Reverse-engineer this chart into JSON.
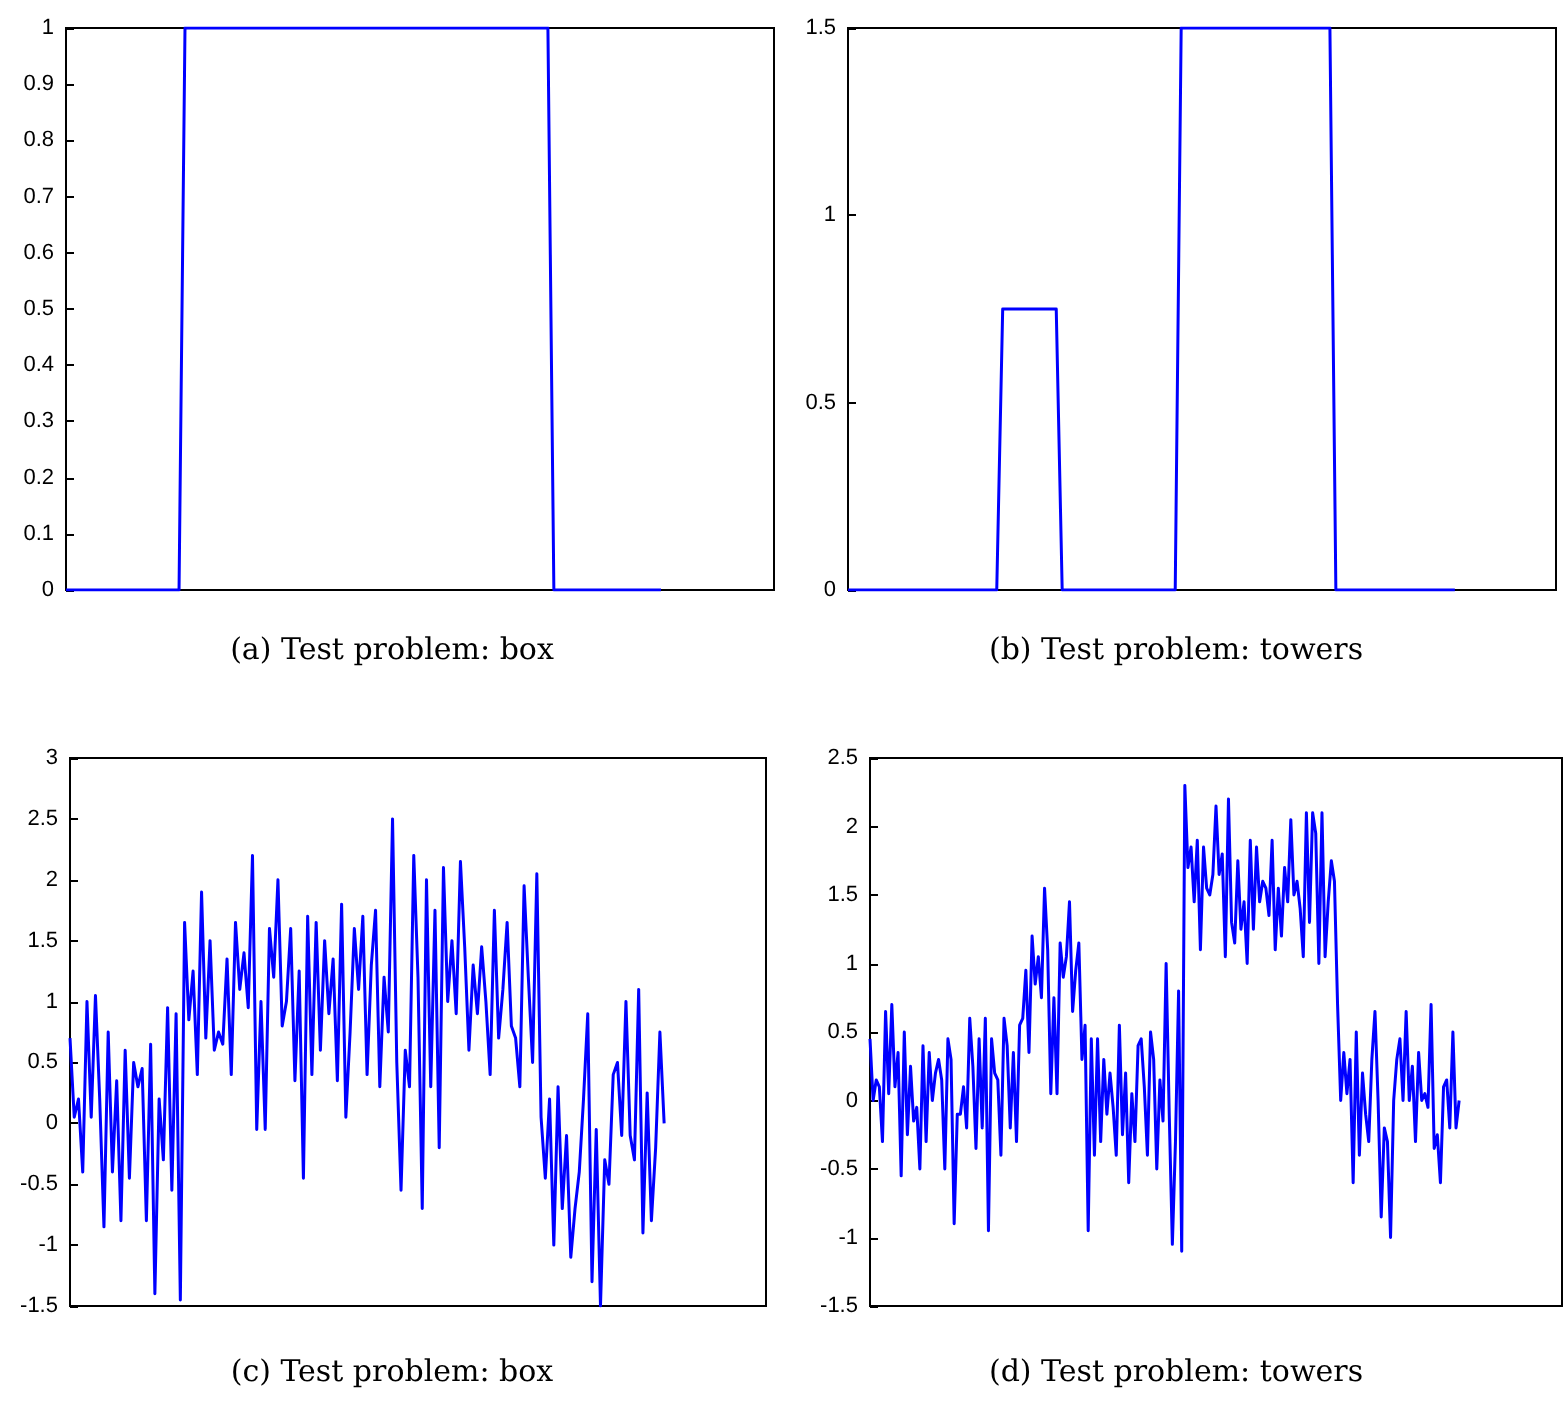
{
  "chart_data": [
    {
      "type": "line",
      "title": "(a) Test problem: box",
      "categories": [
        null,
        null,
        null,
        null,
        null,
        null,
        null,
        null,
        null,
        null,
        null,
        null,
        null,
        null,
        null,
        null,
        null,
        null,
        null,
        null,
        null,
        null,
        null,
        null,
        null,
        null,
        null,
        null,
        null,
        null,
        null,
        null,
        null,
        null,
        null,
        null,
        null,
        null,
        null,
        null,
        null,
        null,
        null,
        null,
        null,
        null,
        null,
        null,
        null,
        null,
        null,
        null,
        null,
        null,
        null,
        null,
        null,
        null,
        null,
        null,
        null,
        null,
        null,
        null,
        null,
        null,
        null,
        null,
        null,
        null,
        null,
        null,
        null,
        null,
        null,
        null,
        null,
        null,
        null,
        null,
        null,
        null,
        null,
        null,
        null,
        null,
        null,
        null,
        null,
        null,
        null,
        null,
        null,
        null,
        null,
        null,
        null,
        null,
        null,
        null,
        null,
        null,
        null,
        null,
        null,
        null,
        null,
        null,
        null,
        null,
        null,
        null,
        null,
        null,
        null,
        null,
        null,
        null,
        null,
        null
      ],
      "series": [
        {
          "color": "#0000ff",
          "values": [
            0,
            0,
            0,
            0,
            0,
            0,
            0,
            0,
            0,
            0,
            0,
            0,
            0,
            0,
            0,
            0,
            0,
            0,
            0,
            0,
            1,
            1,
            1,
            1,
            1,
            1,
            1,
            1,
            1,
            1,
            1,
            1,
            1,
            1,
            1,
            1,
            1,
            1,
            1,
            1,
            1,
            1,
            1,
            1,
            1,
            1,
            1,
            1,
            1,
            1,
            1,
            1,
            1,
            1,
            1,
            1,
            1,
            1,
            1,
            1,
            1,
            1,
            1,
            1,
            1,
            1,
            1,
            1,
            1,
            1,
            1,
            1,
            1,
            1,
            1,
            1,
            1,
            1,
            1,
            1,
            1,
            1,
            0,
            0,
            0,
            0,
            0,
            0,
            0,
            0,
            0,
            0,
            0,
            0,
            0,
            0,
            0,
            0,
            0,
            0,
            0,
            null,
            null,
            null,
            null,
            null,
            null,
            null,
            null,
            null,
            null,
            null,
            null,
            null,
            null,
            null,
            null,
            null,
            null,
            null
          ]
        }
      ],
      "ylim": [
        0,
        1
      ],
      "yticks": [
        0,
        0.1,
        0.2,
        0.3,
        0.4,
        0.5,
        0.6,
        0.7,
        0.8,
        0.9,
        1
      ],
      "grid": false,
      "marker": "none",
      "line_style": "solid"
    },
    {
      "type": "line",
      "title": "(b) Test problem: towers",
      "categories": [
        null,
        null,
        null,
        null,
        null,
        null,
        null,
        null,
        null,
        null,
        null,
        null,
        null,
        null,
        null,
        null,
        null,
        null,
        null,
        null,
        null,
        null,
        null,
        null,
        null,
        null,
        null,
        null,
        null,
        null,
        null,
        null,
        null,
        null,
        null,
        null,
        null,
        null,
        null,
        null,
        null,
        null,
        null,
        null,
        null,
        null,
        null,
        null,
        null,
        null,
        null,
        null,
        null,
        null,
        null,
        null,
        null,
        null,
        null,
        null,
        null,
        null,
        null,
        null,
        null,
        null,
        null,
        null,
        null,
        null,
        null,
        null,
        null,
        null,
        null,
        null,
        null,
        null,
        null,
        null,
        null,
        null,
        null,
        null,
        null,
        null,
        null,
        null,
        null,
        null,
        null,
        null,
        null,
        null,
        null,
        null,
        null,
        null,
        null,
        null,
        null,
        null,
        null,
        null,
        null,
        null,
        null,
        null,
        null,
        null,
        null,
        null,
        null,
        null,
        null,
        null,
        null,
        null,
        null,
        null
      ],
      "series": [
        {
          "color": "#0000ff",
          "values": [
            0,
            0,
            0,
            0,
            0,
            0,
            0,
            0,
            0,
            0,
            0,
            0,
            0,
            0,
            0,
            0,
            0,
            0,
            0,
            0,
            0,
            0,
            0,
            0,
            0,
            0,
            0.75,
            0.75,
            0.75,
            0.75,
            0.75,
            0.75,
            0.75,
            0.75,
            0.75,
            0.75,
            0,
            0,
            0,
            0,
            0,
            0,
            0,
            0,
            0,
            0,
            0,
            0,
            0,
            0,
            0,
            0,
            0,
            0,
            0,
            0,
            1.5,
            1.5,
            1.5,
            1.5,
            1.5,
            1.5,
            1.5,
            1.5,
            1.5,
            1.5,
            1.5,
            1.5,
            1.5,
            1.5,
            1.5,
            1.5,
            1.5,
            1.5,
            1.5,
            1.5,
            1.5,
            1.5,
            1.5,
            1.5,
            1.5,
            1.5,
            0,
            0,
            0,
            0,
            0,
            0,
            0,
            0,
            0,
            0,
            0,
            0,
            0,
            0,
            0,
            0,
            0,
            0,
            0,
            0,
            0,
            null,
            null,
            null,
            null,
            null,
            null,
            null,
            null,
            null,
            null,
            null,
            null,
            null,
            null,
            null,
            null,
            null
          ]
        }
      ],
      "ylim": [
        0,
        1.5
      ],
      "yticks": [
        0,
        0.5,
        1,
        1.5
      ],
      "grid": false,
      "marker": "none",
      "line_style": "solid"
    },
    {
      "type": "line",
      "title": "(c) Test problem: box",
      "categories": [
        null,
        null,
        null,
        null,
        null,
        null,
        null,
        null,
        null,
        null,
        null,
        null,
        null,
        null,
        null,
        null,
        null,
        null,
        null,
        null,
        null,
        null,
        null,
        null,
        null,
        null,
        null,
        null,
        null,
        null,
        null,
        null,
        null,
        null,
        null,
        null,
        null,
        null,
        null,
        null,
        null,
        null,
        null,
        null,
        null,
        null,
        null,
        null,
        null,
        null,
        null,
        null,
        null,
        null,
        null,
        null,
        null,
        null,
        null,
        null,
        null,
        null,
        null,
        null,
        null,
        null,
        null,
        null,
        null,
        null,
        null,
        null,
        null,
        null,
        null,
        null,
        null,
        null,
        null,
        null,
        null,
        null,
        null,
        null,
        null,
        null,
        null,
        null,
        null,
        null,
        null,
        null,
        null,
        null,
        null,
        null,
        null,
        null,
        null,
        null,
        null,
        null,
        null,
        null,
        null,
        null,
        null,
        null,
        null,
        null,
        null,
        null,
        null,
        null,
        null,
        null,
        null,
        null,
        null,
        null,
        null,
        null,
        null,
        null,
        null,
        null,
        null,
        null,
        null,
        null,
        null,
        null,
        null,
        null,
        null,
        null,
        null,
        null,
        null,
        null,
        null,
        null,
        null,
        null,
        null,
        null,
        null,
        null,
        null,
        null,
        null,
        null,
        null,
        null,
        null,
        null,
        null,
        null,
        null,
        null,
        null,
        null,
        null,
        null,
        null
      ],
      "series": [
        {
          "color": "#0000ff",
          "values": [
            0.7,
            0.05,
            0.2,
            -0.4,
            1.0,
            0.05,
            1.05,
            0.2,
            -0.85,
            0.75,
            -0.4,
            0.35,
            -0.8,
            0.6,
            -0.45,
            0.5,
            0.3,
            0.45,
            -0.8,
            0.65,
            -1.4,
            0.2,
            -0.3,
            0.95,
            -0.55,
            0.9,
            -1.45,
            1.65,
            0.85,
            1.25,
            0.4,
            1.9,
            0.7,
            1.5,
            0.6,
            0.75,
            0.65,
            1.35,
            0.4,
            1.65,
            1.1,
            1.4,
            0.95,
            2.2,
            -0.05,
            1.0,
            -0.05,
            1.6,
            1.2,
            2.0,
            0.8,
            1.0,
            1.6,
            0.35,
            1.25,
            -0.45,
            1.7,
            0.4,
            1.65,
            0.6,
            1.5,
            0.9,
            1.35,
            0.35,
            1.8,
            0.05,
            0.75,
            1.6,
            1.1,
            1.7,
            0.4,
            1.3,
            1.75,
            0.3,
            1.2,
            0.75,
            2.5,
            0.5,
            -0.55,
            0.6,
            0.3,
            2.2,
            1.2,
            -0.7,
            2.0,
            0.3,
            1.75,
            -0.2,
            2.1,
            1.0,
            1.5,
            0.9,
            2.15,
            1.45,
            0.6,
            1.3,
            0.9,
            1.45,
            1.0,
            0.4,
            1.75,
            0.7,
            1.1,
            1.65,
            0.8,
            0.7,
            0.3,
            1.95,
            1.2,
            0.5,
            2.05,
            0.05,
            -0.45,
            0.2,
            -1.0,
            0.3,
            -0.7,
            -0.1,
            -1.1,
            -0.7,
            -0.4,
            0.2,
            0.9,
            -1.3,
            -0.05,
            -1.5,
            -0.3,
            -0.5,
            0.4,
            0.5,
            -0.1,
            1.0,
            -0.1,
            -0.3,
            1.1,
            -0.9,
            0.25,
            -0.8,
            -0.2,
            0.75,
            0.0,
            null,
            null,
            null,
            null,
            null,
            null,
            null,
            null,
            null,
            null,
            null,
            null,
            null,
            null,
            null,
            null,
            null,
            null,
            null,
            null,
            null,
            null,
            null,
            null
          ]
        }
      ],
      "ylim": [
        -1.5,
        3
      ],
      "yticks": [
        -1.5,
        -1,
        -0.5,
        0,
        0.5,
        1,
        1.5,
        2,
        2.5,
        3
      ],
      "grid": false,
      "marker": "none",
      "line_style": "solid"
    },
    {
      "type": "line",
      "title": "(d) Test problem: towers",
      "categories": [
        null,
        null,
        null,
        null,
        null,
        null,
        null,
        null,
        null,
        null,
        null,
        null,
        null,
        null,
        null,
        null,
        null,
        null,
        null,
        null,
        null,
        null,
        null,
        null,
        null,
        null,
        null,
        null,
        null,
        null,
        null,
        null,
        null,
        null,
        null,
        null,
        null,
        null,
        null,
        null,
        null,
        null,
        null,
        null,
        null,
        null,
        null,
        null,
        null,
        null,
        null,
        null,
        null,
        null,
        null,
        null,
        null,
        null,
        null,
        null,
        null,
        null,
        null,
        null,
        null,
        null,
        null,
        null,
        null,
        null,
        null,
        null,
        null,
        null,
        null,
        null,
        null,
        null,
        null,
        null,
        null,
        null,
        null,
        null,
        null,
        null,
        null,
        null,
        null,
        null,
        null,
        null,
        null,
        null,
        null,
        null,
        null,
        null,
        null,
        null,
        null,
        null,
        null,
        null,
        null,
        null,
        null,
        null,
        null,
        null,
        null,
        null,
        null,
        null,
        null,
        null,
        null,
        null,
        null,
        null,
        null,
        null,
        null,
        null,
        null,
        null,
        null,
        null,
        null,
        null,
        null,
        null,
        null,
        null,
        null,
        null,
        null,
        null,
        null,
        null,
        null,
        null,
        null,
        null,
        null,
        null,
        null,
        null,
        null,
        null,
        null,
        null,
        null,
        null,
        null,
        null,
        null,
        null,
        null,
        null,
        null,
        null,
        null,
        null,
        null,
        null,
        null,
        null,
        null,
        null,
        null,
        null,
        null,
        null,
        null,
        null,
        null,
        null,
        null,
        null,
        null,
        null,
        null,
        null,
        null,
        null,
        null,
        null,
        null,
        null,
        null,
        null,
        null,
        null,
        null,
        null,
        null,
        null,
        null,
        null,
        null,
        null,
        null,
        null,
        null,
        null,
        null,
        null,
        null,
        null,
        null,
        null,
        null,
        null,
        null,
        null,
        null,
        null,
        null,
        null,
        null,
        null,
        null
      ],
      "series": [
        {
          "color": "#0000ff",
          "values": [
            0.45,
            0.0,
            0.15,
            0.1,
            -0.3,
            0.65,
            0.05,
            0.7,
            0.1,
            0.35,
            -0.55,
            0.5,
            -0.25,
            0.25,
            -0.15,
            -0.05,
            -0.5,
            0.4,
            -0.3,
            0.35,
            0.0,
            0.2,
            0.3,
            0.15,
            -0.5,
            0.45,
            0.3,
            -0.9,
            -0.1,
            -0.1,
            0.1,
            -0.2,
            0.6,
            0.25,
            -0.35,
            0.45,
            -0.2,
            0.6,
            -0.95,
            0.45,
            0.2,
            0.15,
            -0.4,
            0.6,
            0.4,
            -0.2,
            0.35,
            -0.3,
            0.55,
            0.6,
            0.95,
            0.35,
            1.2,
            0.85,
            1.05,
            0.75,
            1.55,
            1.1,
            0.05,
            0.75,
            0.05,
            1.15,
            0.9,
            1.05,
            1.45,
            0.65,
            0.95,
            1.15,
            0.3,
            0.55,
            -0.95,
            0.45,
            -0.4,
            0.45,
            -0.3,
            0.3,
            -0.1,
            0.2,
            -0.05,
            -0.4,
            0.55,
            -0.25,
            0.2,
            -0.6,
            0.05,
            -0.3,
            0.4,
            0.45,
            0.1,
            -0.4,
            0.5,
            0.3,
            -0.5,
            0.15,
            -0.15,
            1.0,
            -0.1,
            -1.05,
            -0.3,
            0.8,
            -1.1,
            2.3,
            1.7,
            1.85,
            1.45,
            1.9,
            1.1,
            1.85,
            1.55,
            1.5,
            1.65,
            2.15,
            1.65,
            1.8,
            1.05,
            2.2,
            1.3,
            1.15,
            1.75,
            1.25,
            1.45,
            1.0,
            1.9,
            1.25,
            1.85,
            1.45,
            1.6,
            1.55,
            1.35,
            1.9,
            1.1,
            1.55,
            1.2,
            1.7,
            1.45,
            2.05,
            1.5,
            1.6,
            1.4,
            1.05,
            2.1,
            1.3,
            2.1,
            1.95,
            1.0,
            2.1,
            1.05,
            1.45,
            1.75,
            1.6,
            0.7,
            0.0,
            0.35,
            0.05,
            0.3,
            -0.6,
            0.5,
            -0.4,
            0.2,
            -0.1,
            -0.3,
            0.3,
            0.65,
            0.0,
            -0.85,
            -0.2,
            -0.3,
            -1.0,
            0.0,
            0.3,
            0.45,
            0.0,
            0.65,
            0.0,
            0.25,
            -0.3,
            0.35,
            0.0,
            0.05,
            -0.05,
            0.7,
            -0.35,
            -0.25,
            -0.6,
            0.1,
            0.15,
            -0.2,
            0.5,
            -0.2,
            0.0,
            null,
            null,
            null,
            null,
            null,
            null,
            null,
            null,
            null,
            null,
            null,
            null,
            null,
            null,
            null,
            null,
            null,
            null,
            null,
            null,
            null,
            null,
            null,
            null,
            null,
            null,
            null,
            null,
            null,
            null,
            null,
            null,
            null
          ]
        }
      ],
      "ylim": [
        -1.5,
        2.5
      ],
      "yticks": [
        -1.5,
        -1,
        -0.5,
        0,
        0.5,
        1,
        1.5,
        2,
        2.5
      ],
      "grid": false,
      "marker": "none",
      "line_style": "solid"
    }
  ]
}
